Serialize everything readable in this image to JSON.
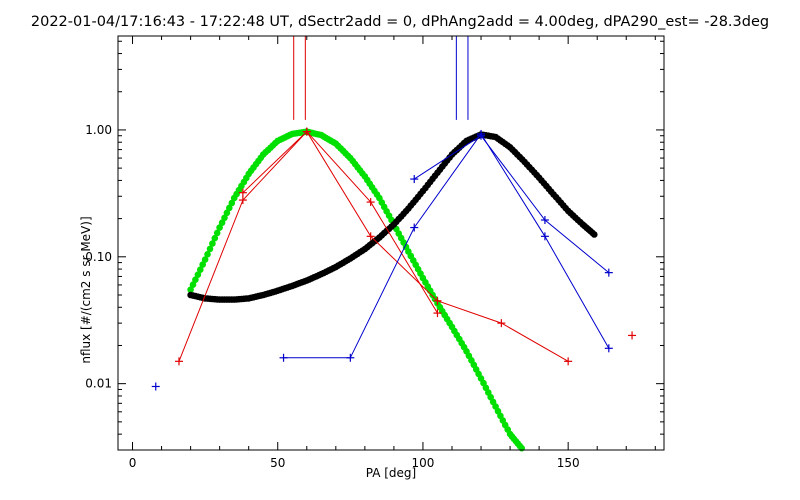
{
  "chart_data": {
    "type": "scatter",
    "title": "2022-01-04/17:16:43 - 17:22:48 UT, dSectr2add = 0, dPhAng2add = 4.00deg, dPA290_est= -28.3deg",
    "xlabel": "PA [deg]",
    "ylabel": "nflux [#/(cm2 s sr MeV)]",
    "xlim": [
      -5,
      183
    ],
    "ylim": [
      0.003,
      5.5
    ],
    "yscale": "log",
    "x_ticks": [
      0,
      50,
      100,
      150
    ],
    "x_tick_labels": [
      "0",
      "50",
      "100",
      "150"
    ],
    "y_ticks": [
      0.01,
      0.1,
      1.0
    ],
    "y_tick_labels": [
      "0.01",
      "0.10",
      "1.00"
    ],
    "grid": false,
    "colors": {
      "red": "#e00000",
      "blue": "#0000cc",
      "green": "#00e000",
      "black": "#000000"
    },
    "series": [
      {
        "color": "red",
        "style": "line+plus",
        "x": [
          16,
          38,
          60,
          82,
          105,
          127,
          150
        ],
        "y": [
          0.015,
          0.28,
          0.97,
          0.145,
          0.045,
          0.03,
          0.015
        ]
      },
      {
        "color": "red",
        "style": "line+plus",
        "x": [
          38,
          60,
          82,
          105
        ],
        "y": [
          0.32,
          0.97,
          0.27,
          0.036
        ]
      },
      {
        "color": "red",
        "style": "plus",
        "x": [
          172
        ],
        "y": [
          0.024
        ]
      },
      {
        "color": "blue",
        "style": "plus",
        "x": [
          8
        ],
        "y": [
          0.0095
        ]
      },
      {
        "color": "blue",
        "style": "line+plus",
        "x": [
          52,
          75,
          97,
          120,
          142,
          164
        ],
        "y": [
          0.016,
          0.016,
          0.17,
          0.93,
          0.145,
          0.019
        ]
      },
      {
        "color": "blue",
        "style": "line+plus",
        "x": [
          97,
          120,
          142,
          164
        ],
        "y": [
          0.41,
          0.9,
          0.195,
          0.075
        ]
      },
      {
        "color": "green",
        "style": "fit-curve",
        "x": [
          20,
          25,
          30,
          35,
          40,
          45,
          50,
          55,
          60,
          65,
          70,
          75,
          80,
          85,
          90,
          95,
          100,
          105,
          110,
          115,
          120,
          125,
          130,
          134
        ],
        "y": [
          0.055,
          0.095,
          0.17,
          0.29,
          0.45,
          0.64,
          0.82,
          0.93,
          0.97,
          0.91,
          0.78,
          0.6,
          0.43,
          0.29,
          0.18,
          0.11,
          0.068,
          0.043,
          0.028,
          0.018,
          0.011,
          0.0066,
          0.004,
          0.0031
        ]
      },
      {
        "color": "black",
        "style": "fit-curve",
        "x": [
          20,
          25,
          30,
          35,
          40,
          45,
          50,
          55,
          60,
          65,
          70,
          75,
          80,
          85,
          90,
          95,
          100,
          105,
          110,
          115,
          120,
          125,
          130,
          135,
          140,
          145,
          150,
          155,
          159
        ],
        "y": [
          0.05,
          0.047,
          0.046,
          0.046,
          0.047,
          0.05,
          0.054,
          0.059,
          0.065,
          0.073,
          0.083,
          0.097,
          0.115,
          0.142,
          0.18,
          0.24,
          0.33,
          0.46,
          0.64,
          0.82,
          0.92,
          0.88,
          0.73,
          0.56,
          0.42,
          0.31,
          0.23,
          0.18,
          0.15
        ]
      }
    ],
    "markers": [
      {
        "color": "red",
        "x": 55.5,
        "y_from": 1.2,
        "y_to": 5.5
      },
      {
        "color": "red",
        "x": 59.5,
        "y_from": 1.2,
        "y_to": 5.5
      },
      {
        "color": "blue",
        "x": 111.5,
        "y_from": 1.2,
        "y_to": 5.5
      },
      {
        "color": "blue",
        "x": 115.5,
        "y_from": 1.2,
        "y_to": 5.5
      }
    ]
  }
}
